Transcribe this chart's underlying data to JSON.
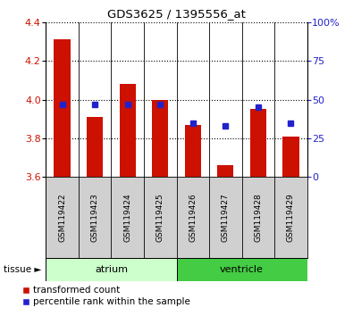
{
  "title": "GDS3625 / 1395556_at",
  "samples": [
    "GSM119422",
    "GSM119423",
    "GSM119424",
    "GSM119425",
    "GSM119426",
    "GSM119427",
    "GSM119428",
    "GSM119429"
  ],
  "red_values": [
    4.31,
    3.91,
    4.08,
    4.0,
    3.87,
    3.66,
    3.95,
    3.81
  ],
  "blue_pct": [
    47,
    47,
    47,
    47,
    35,
    33,
    45,
    35
  ],
  "ymin": 3.6,
  "ymax": 4.4,
  "y_ticks": [
    3.6,
    3.8,
    4.0,
    4.2,
    4.4
  ],
  "right_yticks": [
    0,
    25,
    50,
    75,
    100
  ],
  "right_yticklabels": [
    "0",
    "25",
    "50",
    "75",
    "100%"
  ],
  "bar_color": "#cc1100",
  "blue_color": "#2222cc",
  "groups": [
    {
      "label": "atrium",
      "start": 0,
      "end": 4,
      "color": "#ccffcc"
    },
    {
      "label": "ventricle",
      "start": 4,
      "end": 8,
      "color": "#44cc44"
    }
  ],
  "legend_entries": [
    {
      "label": "transformed count",
      "color": "#cc1100"
    },
    {
      "label": "percentile rank within the sample",
      "color": "#2222cc"
    }
  ],
  "left_label_color": "#cc1100",
  "right_label_color": "#2222cc"
}
